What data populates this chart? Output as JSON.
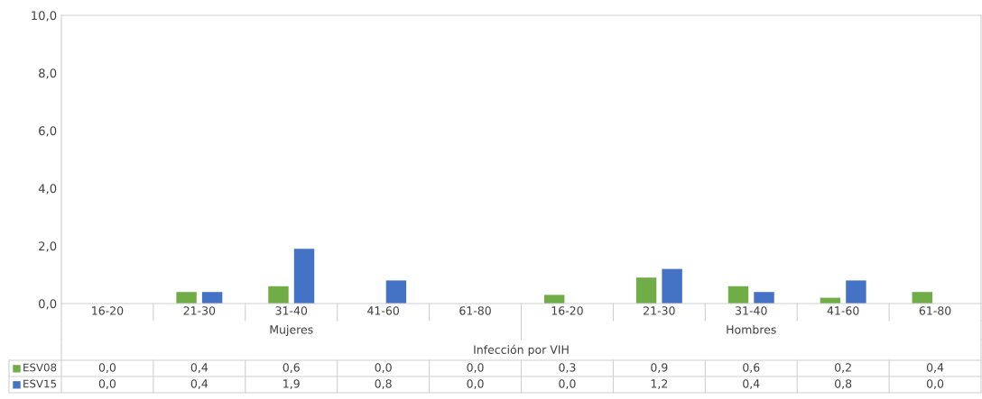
{
  "chart_data": {
    "type": "bar",
    "xlabel": "Infección por VIH",
    "categories": [
      "16-20",
      "21-30",
      "31-40",
      "41-60",
      "61-80",
      "16-20",
      "21-30",
      "31-40",
      "41-60",
      "61-80"
    ],
    "annotations": [
      "Mujeres",
      "Hombres"
    ],
    "series": [
      {
        "name": "ESV08",
        "color": "#70ad47",
        "values": [
          0.0,
          0.4,
          0.6,
          0.0,
          0.0,
          0.3,
          0.9,
          0.6,
          0.2,
          0.4
        ],
        "value_labels": [
          "0,0",
          "0,4",
          "0,6",
          "0,0",
          "0,0",
          "0,3",
          "0,9",
          "0,6",
          "0,2",
          "0,4"
        ]
      },
      {
        "name": "ESV15",
        "color": "#4472c4",
        "values": [
          0.0,
          0.4,
          1.9,
          0.8,
          0.0,
          0.0,
          1.2,
          0.4,
          0.8,
          0.0
        ],
        "value_labels": [
          "0,0",
          "0,4",
          "1,9",
          "0,8",
          "0,0",
          "0,0",
          "1,2",
          "0,4",
          "0,8",
          "0,0"
        ]
      }
    ],
    "ylim": [
      0,
      10
    ],
    "yticks": [
      {
        "value": 0,
        "label": "0,0"
      },
      {
        "value": 2,
        "label": "2,0"
      },
      {
        "value": 4,
        "label": "4,0"
      },
      {
        "value": 6,
        "label": "6,0"
      },
      {
        "value": 8,
        "label": "8,0"
      },
      {
        "value": 10,
        "label": "10,0"
      }
    ],
    "grid": false,
    "legend": "bottom"
  }
}
